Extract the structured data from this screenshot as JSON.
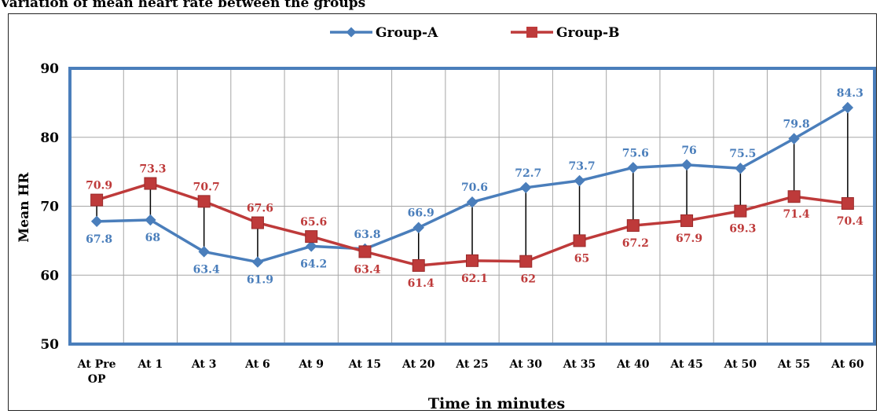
{
  "page_title": "Variation of mean heart rate between the groups",
  "chart_data": {
    "type": "line",
    "title": "",
    "xlabel": "Time in minutes",
    "ylabel": "Mean HR",
    "ylim": [
      50,
      90
    ],
    "yticks": [
      50,
      60,
      70,
      80,
      90
    ],
    "grid": true,
    "legend_position": "top-center",
    "categories": [
      "At Pre OP",
      "At 1",
      "At 3",
      "At 6",
      "At 9",
      "At 15",
      "At 20",
      "At 25",
      "At 30",
      "At 35",
      "At 40",
      "At 45",
      "At 50",
      "At 55",
      "At 60"
    ],
    "series": [
      {
        "name": "Group-A",
        "color": "#4a7ebb",
        "marker": "diamond",
        "values": [
          67.8,
          68,
          63.4,
          61.9,
          64.2,
          63.8,
          66.9,
          70.6,
          72.7,
          73.7,
          75.6,
          76,
          75.5,
          79.8,
          84.3
        ]
      },
      {
        "name": "Group-B",
        "color": "#be3a3a",
        "marker": "square",
        "values": [
          70.9,
          73.3,
          70.7,
          67.6,
          65.6,
          63.4,
          61.4,
          62.1,
          62,
          65,
          67.2,
          67.9,
          69.3,
          71.4,
          70.4
        ]
      }
    ],
    "plot_border_color": "#4a7ebb",
    "droplines": true
  }
}
